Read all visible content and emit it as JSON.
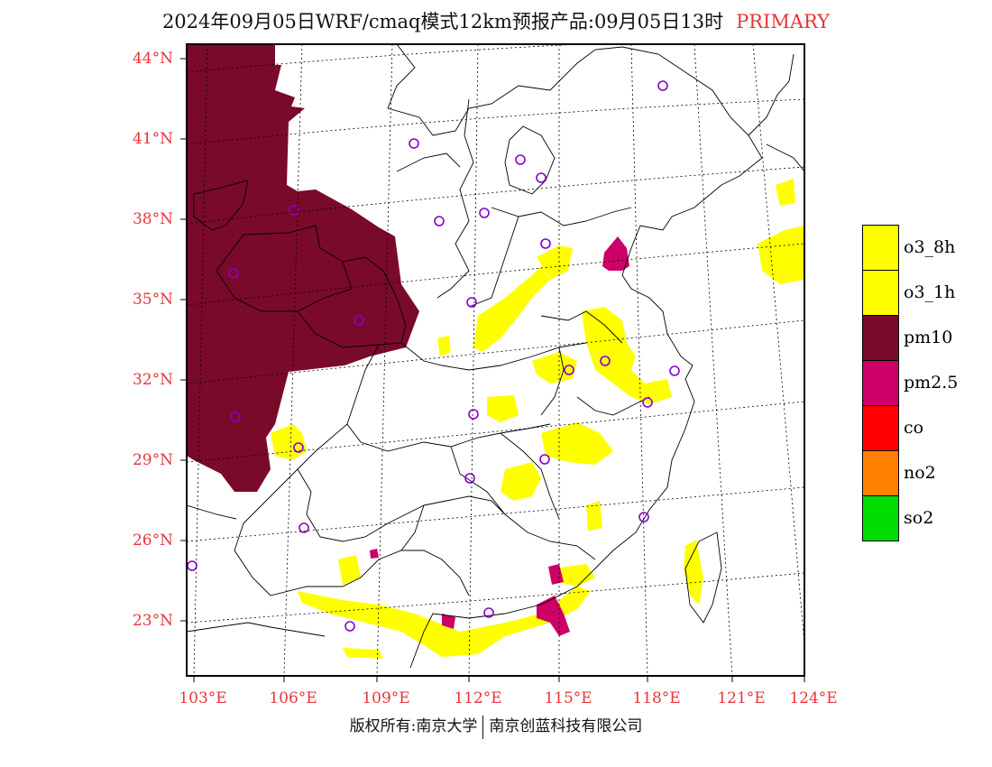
{
  "title": {
    "main": "2024年09月05日WRF/cmaq模式12km预报产品:09月05日13时",
    "tag": "PRIMARY",
    "tag_color": "#e8343a"
  },
  "axes": {
    "lat_labels": [
      "44°N",
      "41°N",
      "38°N",
      "35°N",
      "32°N",
      "29°N",
      "26°N",
      "23°N"
    ],
    "lon_labels": [
      "103°E",
      "106°E",
      "109°E",
      "112°E",
      "115°E",
      "118°E",
      "121°E",
      "124°E"
    ],
    "label_color": "#e8343a",
    "grid": "dotted"
  },
  "legend": {
    "items": [
      {
        "label": "o3_8h",
        "color": "#ffff00"
      },
      {
        "label": "o3_1h",
        "color": "#ffff00"
      },
      {
        "label": "pm10",
        "color": "#7a0a2a"
      },
      {
        "label": "pm2.5",
        "color": "#cc0066"
      },
      {
        "label": "co",
        "color": "#ff0000"
      },
      {
        "label": "no2",
        "color": "#ff8000"
      },
      {
        "label": "so2",
        "color": "#00dd00"
      }
    ]
  },
  "credit": {
    "left": "版权所有:南京大学",
    "right": "南京创蓝科技有限公司"
  }
}
